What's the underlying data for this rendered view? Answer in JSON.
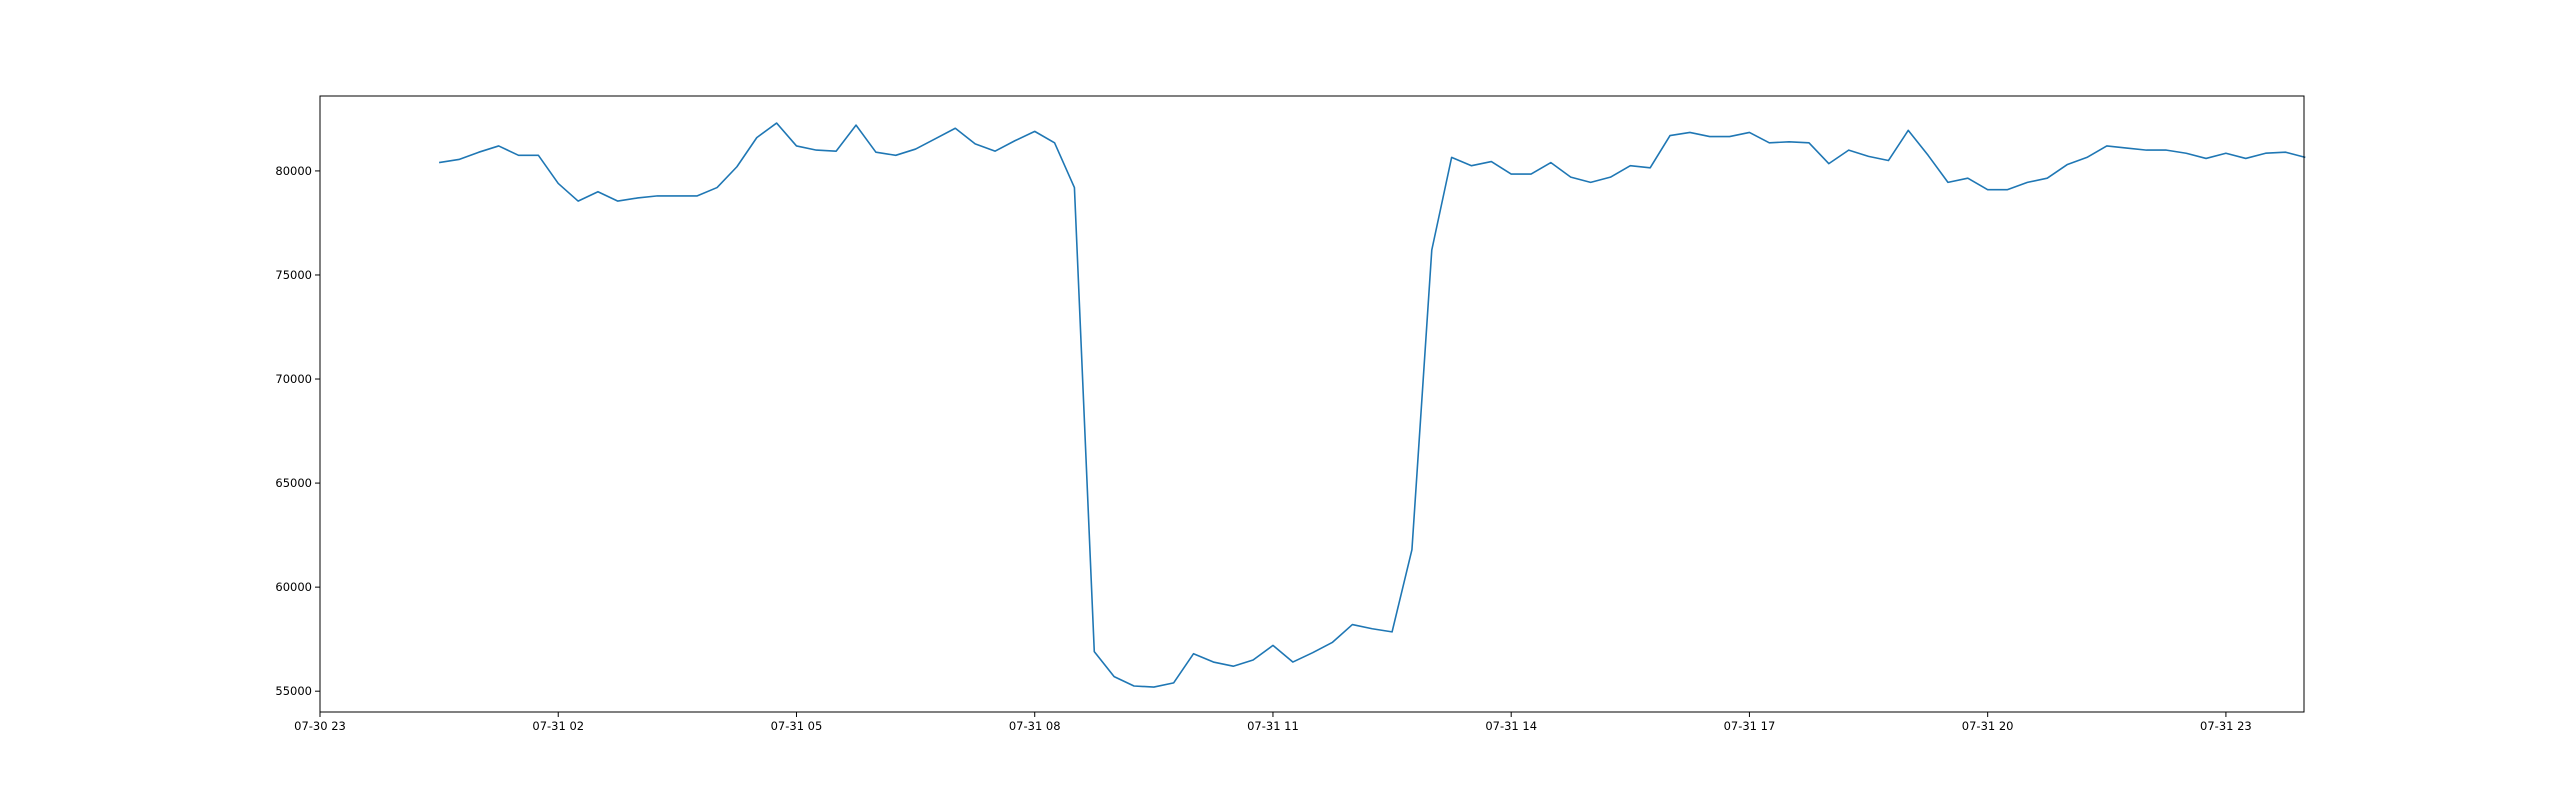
{
  "chart_data": {
    "type": "line",
    "title": "",
    "xlabel": "",
    "ylabel": "",
    "x_start": "07-31 00:30",
    "x_step_minutes": 15,
    "xlim": [
      "07-30 23:00",
      "07-31 23:59"
    ],
    "ylim": [
      54000,
      83600
    ],
    "xticks": [
      "07-30 23",
      "07-31 02",
      "07-31 05",
      "07-31 08",
      "07-31 11",
      "07-31 14",
      "07-31 17",
      "07-31 20",
      "07-31 23"
    ],
    "yticks": [
      55000,
      60000,
      65000,
      70000,
      75000,
      80000
    ],
    "grid": false,
    "legend": "none",
    "series": [
      {
        "color": "#1f77b4",
        "values": [
          80400,
          80550,
          80900,
          81200,
          80750,
          80750,
          79400,
          78550,
          79000,
          78550,
          78700,
          78800,
          78800,
          78800,
          79200,
          80200,
          81600,
          82300,
          81200,
          81000,
          80950,
          82200,
          80900,
          80750,
          81050,
          81550,
          82050,
          81300,
          80950,
          81450,
          81900,
          81350,
          79200,
          56900,
          55700,
          55250,
          55200,
          55400,
          56800,
          56400,
          56200,
          56500,
          57200,
          56400,
          56850,
          57350,
          58200,
          58000,
          57850,
          61800,
          76200,
          80650,
          80250,
          80450,
          79850,
          79850,
          80400,
          79700,
          79450,
          79700,
          80250,
          80150,
          81700,
          81850,
          81650,
          81650,
          81850,
          81350,
          81400,
          81350,
          80350,
          81000,
          80700,
          80500,
          81950,
          80750,
          79450,
          79650,
          79100,
          79100,
          79450,
          79650,
          80300,
          80650,
          81200,
          81100,
          81000,
          81000,
          80850,
          80600,
          80850,
          80600,
          80850,
          80900,
          80650
        ]
      }
    ]
  }
}
